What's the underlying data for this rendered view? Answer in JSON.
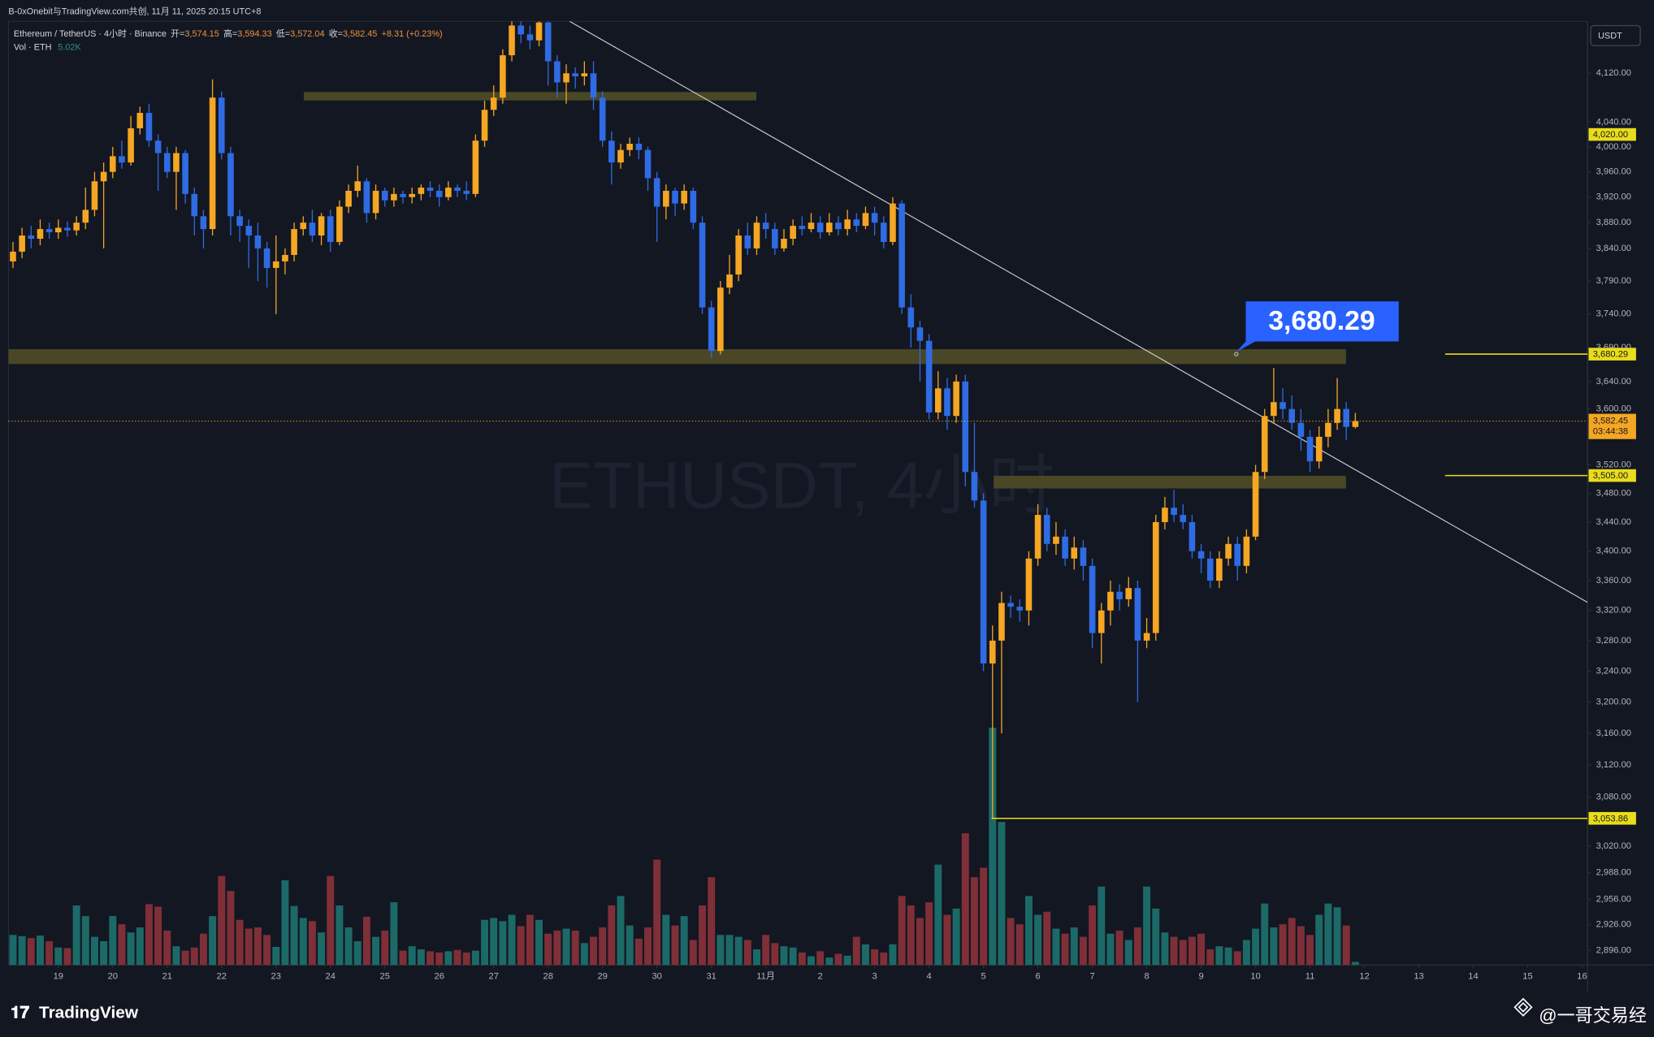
{
  "header": {
    "attribution": "B-0xOnebit与TradingView.com共创, 11月 11, 2025 20:15 UTC+8"
  },
  "chart_data": {
    "type": "candlestick",
    "title": "Ethereum / TetherUS · 4小时 · Binance",
    "legend": {
      "open_label": "开=",
      "open": "3,574.15",
      "high_label": "高=",
      "high": "3,594.33",
      "low_label": "低=",
      "low": "3,572.04",
      "close_label": "收=",
      "close": "3,582.45",
      "change": "+8.31 (+0.23%)"
    },
    "volume_title": "Vol · ETH",
    "volume_label": "5.02K",
    "watermark": "ETHUSDT, 4小时",
    "currency": "USDT",
    "up_color": "#f5a623",
    "down_color": "#2f6be3",
    "volume_up_color": "#1c6a67",
    "volume_down_color": "#7f2f38",
    "level_color": "#e9dc1a",
    "last_price_color": "#f5a623",
    "log": true,
    "grid": false,
    "open": [
      3820,
      3835,
      3860,
      3855,
      3870,
      3865,
      3872,
      3868,
      3880,
      3900,
      3945,
      3960,
      3985,
      3975,
      4030,
      4055,
      4010,
      3990,
      3960,
      3990,
      3925,
      3890,
      3870,
      4080,
      3990,
      3890,
      3875,
      3860,
      3840,
      3810,
      3820,
      3830,
      3870,
      3880,
      3860,
      3890,
      3850,
      3905,
      3930,
      3945,
      3895,
      3930,
      3915,
      3925,
      3920,
      3925,
      3935,
      3930,
      3920,
      3935,
      3930,
      3925,
      4010,
      4060,
      4080,
      4150,
      4200,
      4185,
      4175,
      4205,
      4140,
      4105,
      4120,
      4115,
      4120,
      4080,
      4010,
      3975,
      3995,
      4005,
      3995,
      3950,
      3905,
      3930,
      3910,
      3930,
      3880,
      3750,
      3685,
      3780,
      3800,
      3860,
      3840,
      3880,
      3870,
      3840,
      3855,
      3875,
      3870,
      3880,
      3865,
      3880,
      3870,
      3885,
      3875,
      3895,
      3880,
      3850,
      3910,
      3750,
      3720,
      3700,
      3595,
      3630,
      3590,
      3640,
      3510,
      3470,
      3250,
      3280,
      3330,
      3325,
      3320,
      3390,
      3450,
      3410,
      3420,
      3390,
      3405,
      3380,
      3290,
      3320,
      3345,
      3335,
      3350,
      3280,
      3290,
      3440,
      3460,
      3450,
      3440,
      3400,
      3390,
      3360,
      3390,
      3410,
      3380,
      3420,
      3510,
      3590,
      3610,
      3600,
      3580,
      3560,
      3525,
      3560,
      3580,
      3600,
      3574.15
    ],
    "high": [
      3850,
      3872,
      3875,
      3885,
      3880,
      3885,
      3882,
      3890,
      3935,
      3960,
      3975,
      4000,
      4010,
      4050,
      4065,
      4070,
      4020,
      4000,
      4000,
      3995,
      3935,
      3900,
      4110,
      4090,
      4000,
      3900,
      3885,
      3880,
      3850,
      3860,
      3840,
      3880,
      3890,
      3900,
      3895,
      3900,
      3915,
      3940,
      3970,
      3950,
      3940,
      3935,
      3935,
      3930,
      3935,
      3940,
      3945,
      3940,
      3945,
      3940,
      3945,
      4020,
      4075,
      4100,
      4160,
      4230,
      4215,
      4200,
      4220,
      4210,
      4150,
      4135,
      4130,
      4140,
      4140,
      4090,
      4025,
      4005,
      4015,
      4015,
      4000,
      3960,
      3940,
      3935,
      3940,
      3935,
      3890,
      3760,
      3790,
      3830,
      3870,
      3880,
      3890,
      3895,
      3880,
      3870,
      3885,
      3890,
      3895,
      3890,
      3895,
      3890,
      3900,
      3895,
      3905,
      3905,
      3890,
      3920,
      3915,
      3770,
      3730,
      3710,
      3655,
      3645,
      3650,
      3650,
      3580,
      3480,
      3300,
      3345,
      3340,
      3335,
      3400,
      3465,
      3460,
      3440,
      3430,
      3420,
      3415,
      3390,
      3330,
      3360,
      3355,
      3365,
      3360,
      3310,
      3450,
      3475,
      3485,
      3465,
      3450,
      3410,
      3400,
      3400,
      3420,
      3420,
      3430,
      3520,
      3600,
      3660,
      3630,
      3620,
      3600,
      3570,
      3575,
      3600,
      3645,
      3610,
      3594.33
    ],
    "low": [
      3810,
      3825,
      3840,
      3845,
      3855,
      3855,
      3858,
      3860,
      3870,
      3890,
      3840,
      3950,
      3965,
      3970,
      4020,
      4000,
      3930,
      3950,
      3900,
      3910,
      3860,
      3840,
      3860,
      3980,
      3860,
      3850,
      3810,
      3790,
      3780,
      3740,
      3800,
      3820,
      3860,
      3850,
      3845,
      3835,
      3845,
      3895,
      3920,
      3880,
      3885,
      3905,
      3905,
      3910,
      3910,
      3915,
      3920,
      3905,
      3915,
      3920,
      3915,
      3920,
      4000,
      4050,
      4070,
      4140,
      4170,
      4160,
      4165,
      4100,
      4080,
      4070,
      4095,
      4100,
      4060,
      4000,
      3940,
      3965,
      3985,
      3980,
      3930,
      3850,
      3885,
      3890,
      3900,
      3870,
      3740,
      3675,
      3680,
      3770,
      3790,
      3830,
      3830,
      3855,
      3830,
      3835,
      3845,
      3860,
      3865,
      3855,
      3860,
      3860,
      3860,
      3865,
      3870,
      3860,
      3840,
      3845,
      3740,
      3690,
      3640,
      3585,
      3585,
      3570,
      3580,
      3490,
      3460,
      3240,
      3053.86,
      3160,
      3310,
      3305,
      3300,
      3380,
      3400,
      3395,
      3380,
      3375,
      3360,
      3270,
      3250,
      3300,
      3320,
      3325,
      3200,
      3270,
      3280,
      3430,
      3440,
      3430,
      3390,
      3370,
      3350,
      3350,
      3380,
      3360,
      3370,
      3415,
      3500,
      3580,
      3585,
      3570,
      3540,
      3510,
      3515,
      3545,
      3570,
      3555,
      3572.04
    ],
    "close": [
      3835,
      3860,
      3855,
      3870,
      3865,
      3872,
      3868,
      3880,
      3900,
      3945,
      3960,
      3985,
      3975,
      4030,
      4055,
      4010,
      3990,
      3960,
      3990,
      3925,
      3890,
      3870,
      4080,
      3990,
      3890,
      3875,
      3860,
      3840,
      3810,
      3820,
      3830,
      3870,
      3880,
      3860,
      3890,
      3850,
      3905,
      3930,
      3945,
      3895,
      3930,
      3915,
      3925,
      3920,
      3925,
      3935,
      3930,
      3920,
      3935,
      3930,
      3925,
      4010,
      4060,
      4080,
      4150,
      4200,
      4185,
      4175,
      4205,
      4140,
      4105,
      4120,
      4115,
      4120,
      4080,
      4010,
      3975,
      3995,
      4005,
      3995,
      3950,
      3905,
      3930,
      3910,
      3930,
      3880,
      3750,
      3685,
      3780,
      3800,
      3860,
      3840,
      3880,
      3870,
      3840,
      3855,
      3875,
      3870,
      3880,
      3865,
      3880,
      3870,
      3885,
      3875,
      3895,
      3880,
      3850,
      3910,
      3750,
      3720,
      3700,
      3595,
      3630,
      3590,
      3640,
      3510,
      3470,
      3250,
      3280,
      3330,
      3325,
      3320,
      3390,
      3450,
      3410,
      3420,
      3390,
      3405,
      3380,
      3290,
      3320,
      3345,
      3335,
      3350,
      3280,
      3290,
      3440,
      3460,
      3450,
      3440,
      3400,
      3390,
      3360,
      3390,
      3410,
      3380,
      3420,
      3510,
      3590,
      3610,
      3600,
      3580,
      3560,
      3525,
      3560,
      3580,
      3600,
      3574.15,
      3582.45
    ],
    "volume": [
      48000,
      46000,
      43000,
      47000,
      38000,
      28000,
      27000,
      95000,
      78000,
      45000,
      38000,
      78000,
      65000,
      52000,
      60000,
      97000,
      93000,
      55000,
      30000,
      23000,
      28000,
      50000,
      78000,
      142000,
      118000,
      72000,
      58000,
      60000,
      48000,
      29000,
      135000,
      94000,
      75000,
      70000,
      52000,
      142000,
      95000,
      60000,
      38000,
      77000,
      45000,
      55000,
      100000,
      23000,
      30000,
      25000,
      22000,
      20000,
      22000,
      24000,
      20000,
      23000,
      72000,
      75000,
      70000,
      80000,
      62000,
      80000,
      72000,
      50000,
      55000,
      58000,
      55000,
      35000,
      45000,
      60000,
      95000,
      110000,
      63000,
      42000,
      60000,
      168000,
      80000,
      63000,
      78000,
      40000,
      95000,
      140000,
      48000,
      48000,
      45000,
      40000,
      25000,
      48000,
      35000,
      30000,
      28000,
      20000,
      14000,
      22000,
      12000,
      18000,
      15000,
      45000,
      33000,
      25000,
      20000,
      33000,
      110000,
      95000,
      75000,
      100000,
      160000,
      80000,
      90000,
      210000,
      140000,
      155000,
      378000,
      228000,
      75000,
      65000,
      110000,
      80000,
      85000,
      58000,
      50000,
      60000,
      45000,
      95000,
      125000,
      50000,
      55000,
      40000,
      60000,
      125000,
      90000,
      52000,
      45000,
      40000,
      45000,
      50000,
      25000,
      30000,
      28000,
      22000,
      40000,
      58000,
      98000,
      60000,
      65000,
      75000,
      62000,
      48000,
      80000,
      98000,
      92000,
      63000,
      5020
    ],
    "xlim": [
      -0.5,
      173.6
    ],
    "xticks": [
      {
        "value": 5,
        "label": "19"
      },
      {
        "value": 11,
        "label": "20"
      },
      {
        "value": 17,
        "label": "21"
      },
      {
        "value": 23,
        "label": "22"
      },
      {
        "value": 29,
        "label": "23"
      },
      {
        "value": 35,
        "label": "24"
      },
      {
        "value": 41,
        "label": "25"
      },
      {
        "value": 47,
        "label": "26"
      },
      {
        "value": 53,
        "label": "27"
      },
      {
        "value": 59,
        "label": "28"
      },
      {
        "value": 65,
        "label": "29"
      },
      {
        "value": 71,
        "label": "30"
      },
      {
        "value": 77,
        "label": "31"
      },
      {
        "value": 83,
        "label": "11月"
      },
      {
        "value": 89,
        "label": "2"
      },
      {
        "value": 95,
        "label": "3"
      },
      {
        "value": 101,
        "label": "4"
      },
      {
        "value": 107,
        "label": "5"
      },
      {
        "value": 113,
        "label": "6"
      },
      {
        "value": 119,
        "label": "7"
      },
      {
        "value": 125,
        "label": "8"
      },
      {
        "value": 131,
        "label": "9"
      },
      {
        "value": 137,
        "label": "10"
      },
      {
        "value": 143,
        "label": "11"
      },
      {
        "value": 149,
        "label": "12"
      },
      {
        "value": 155,
        "label": "13"
      },
      {
        "value": 161,
        "label": "14"
      },
      {
        "value": 167,
        "label": "15"
      },
      {
        "value": 173,
        "label": "16"
      }
    ],
    "ylim": [
      2879,
      4207
    ],
    "yticks": [
      {
        "value": 4120,
        "label": "4,120.00"
      },
      {
        "value": 4040,
        "label": "4,040.00"
      },
      {
        "value": 4000,
        "label": "4,000.00"
      },
      {
        "value": 3960,
        "label": "3,960.00"
      },
      {
        "value": 3920,
        "label": "3,920.00"
      },
      {
        "value": 3880,
        "label": "3,880.00"
      },
      {
        "value": 3840,
        "label": "3,840.00"
      },
      {
        "value": 3790,
        "label": "3,790.00"
      },
      {
        "value": 3740,
        "label": "3,740.00"
      },
      {
        "value": 3690,
        "label": "3,690.00"
      },
      {
        "value": 3640,
        "label": "3,640.00"
      },
      {
        "value": 3600,
        "label": "3,600.00"
      },
      {
        "value": 3520,
        "label": "3,520.00"
      },
      {
        "value": 3480,
        "label": "3,480.00"
      },
      {
        "value": 3440,
        "label": "3,440.00"
      },
      {
        "value": 3400,
        "label": "3,400.00"
      },
      {
        "value": 3360,
        "label": "3,360.00"
      },
      {
        "value": 3320,
        "label": "3,320.00"
      },
      {
        "value": 3280,
        "label": "3,280.00"
      },
      {
        "value": 3240,
        "label": "3,240.00"
      },
      {
        "value": 3200,
        "label": "3,200.00"
      },
      {
        "value": 3160,
        "label": "3,160.00"
      },
      {
        "value": 3120,
        "label": "3,120.00"
      },
      {
        "value": 3080,
        "label": "3,080.00"
      },
      {
        "value": 3020,
        "label": "3,020.00"
      },
      {
        "value": 2988,
        "label": "2,988.00"
      },
      {
        "value": 2956,
        "label": "2,956.00"
      },
      {
        "value": 2926,
        "label": "2,926.00"
      },
      {
        "value": 2896,
        "label": "2,896.00"
      }
    ],
    "levels": [
      {
        "value": 4020,
        "label": "4,020.00"
      },
      {
        "value": 3680.29,
        "label": "3,680.29"
      },
      {
        "value": 3505,
        "label": "3,505.00"
      },
      {
        "value": 3053.86,
        "label": "3,053.86"
      }
    ],
    "callout": {
      "value": 3680.29,
      "label": "3,680.29"
    },
    "last_price": {
      "value": 3582.45,
      "label": "3,582.45",
      "countdown": "03:44:38"
    }
  },
  "footer": {
    "brand": "TradingView",
    "watermark": "@一哥交易经"
  }
}
